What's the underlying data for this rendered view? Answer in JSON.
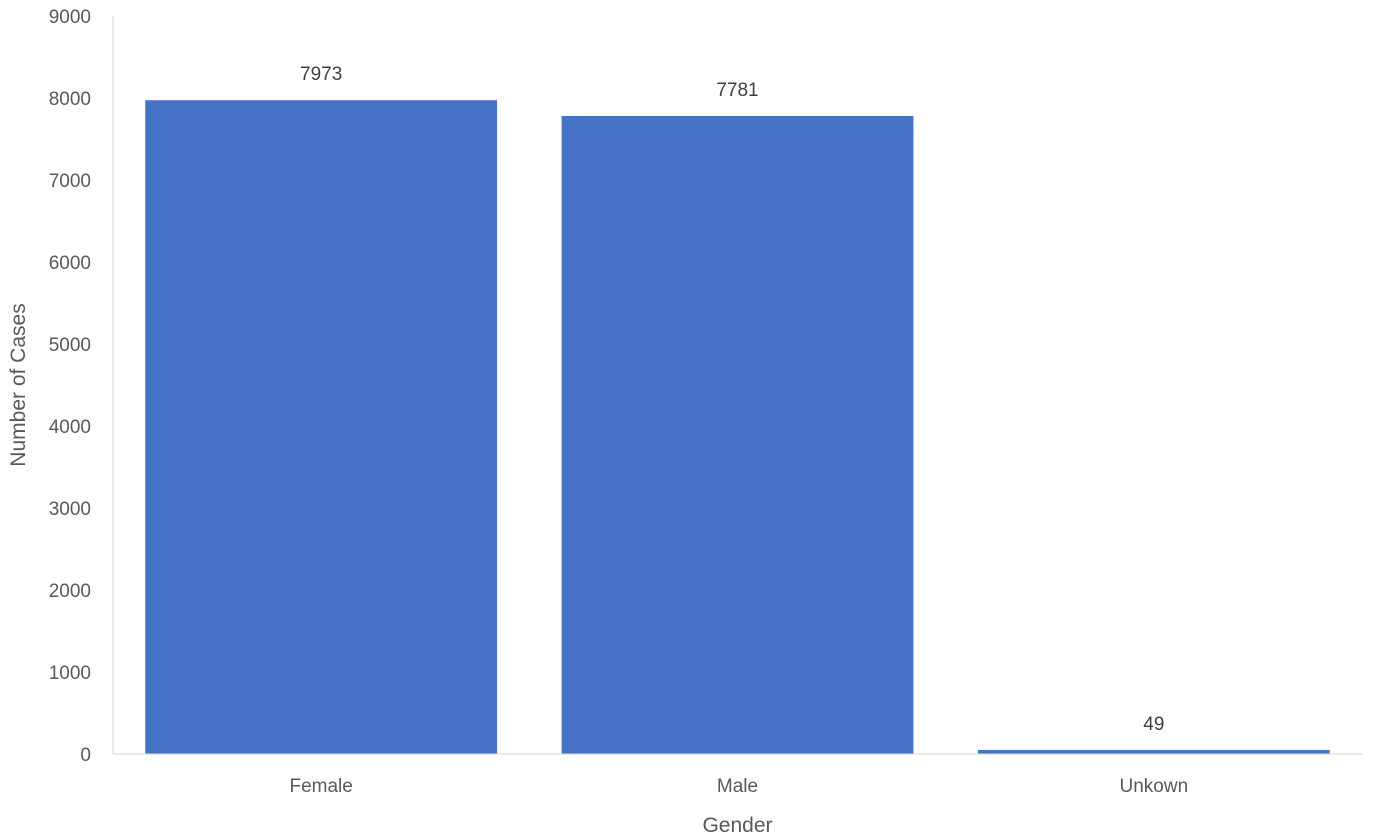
{
  "chart_data": {
    "type": "bar",
    "categories": [
      "Female",
      "Male",
      "Unkown"
    ],
    "values": [
      7973,
      7781,
      49
    ],
    "data_labels": [
      "7973",
      "7781",
      "49"
    ],
    "title": "",
    "xlabel": "Gender",
    "ylabel": "Number of Cases",
    "ylim": [
      0,
      9000
    ],
    "yticks": [
      0,
      1000,
      2000,
      3000,
      4000,
      5000,
      6000,
      7000,
      8000,
      9000
    ],
    "grid": false,
    "legend": "none",
    "bar_color": "#4472C4",
    "axis_color": "#D9D9D9"
  }
}
